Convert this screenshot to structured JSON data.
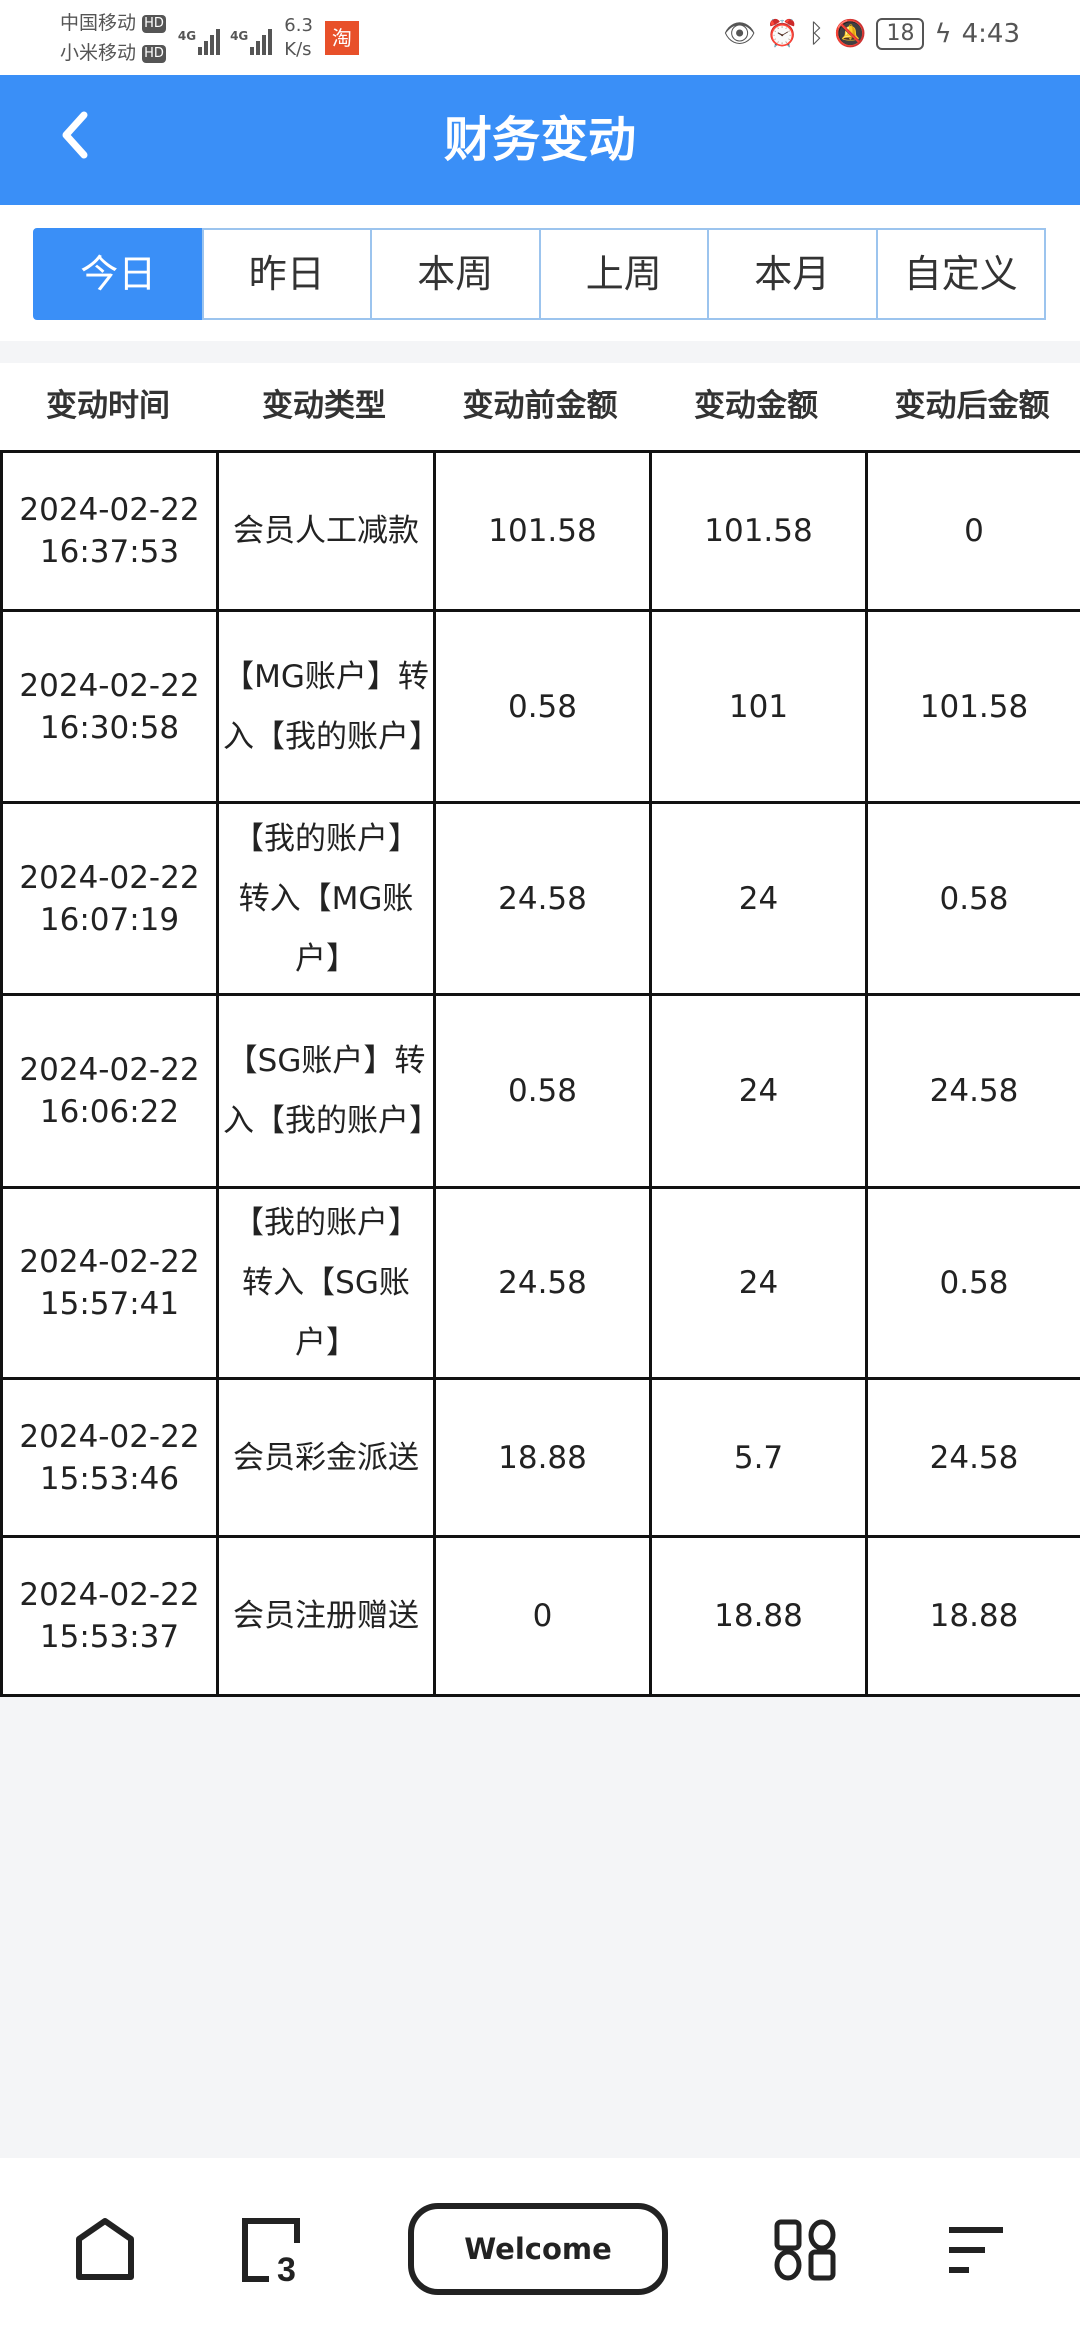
{
  "status_bar": {
    "carrier1": "中国移动",
    "carrier2": "小米移动",
    "hd": "HD",
    "network": "4G",
    "speed_value": "6.3",
    "speed_unit": "K/s",
    "battery": "18",
    "time": "4:43",
    "icons": [
      "eye-icon",
      "alarm-icon",
      "bluetooth-icon",
      "bell-off-icon",
      "battery-icon",
      "charging-icon"
    ]
  },
  "header": {
    "title": "财务变动",
    "back_icon": "chevron-left-icon",
    "color": "#3a8ff7"
  },
  "tabs": [
    {
      "label": "今日",
      "active": true
    },
    {
      "label": "昨日"
    },
    {
      "label": "本周"
    },
    {
      "label": "上周"
    },
    {
      "label": "本月"
    },
    {
      "label": "自定义"
    }
  ],
  "table": {
    "columns": [
      "变动时间",
      "变动类型",
      "变动前金额",
      "变动金额",
      "变动后金额"
    ],
    "rows": [
      {
        "date": "2024-02-22",
        "time": "16:37:53",
        "type": "会员人工减款",
        "before": "101.58",
        "amount": "101.58",
        "after": "0"
      },
      {
        "date": "2024-02-22",
        "time": "16:30:58",
        "type": "【MG账户】转入【我的账户】",
        "before": "0.58",
        "amount": "101",
        "after": "101.58"
      },
      {
        "date": "2024-02-22",
        "time": "16:07:19",
        "type": "【我的账户】转入【MG账户】",
        "before": "24.58",
        "amount": "24",
        "after": "0.58"
      },
      {
        "date": "2024-02-22",
        "time": "16:06:22",
        "type": "【SG账户】转入【我的账户】",
        "before": "0.58",
        "amount": "24",
        "after": "24.58"
      },
      {
        "date": "2024-02-22",
        "time": "15:57:41",
        "type": "【我的账户】转入【SG账户】",
        "before": "24.58",
        "amount": "24",
        "after": "0.58"
      },
      {
        "date": "2024-02-22",
        "time": "15:53:46",
        "type": "会员彩金派送",
        "before": "18.88",
        "amount": "5.7",
        "after": "24.58"
      },
      {
        "date": "2024-02-22",
        "time": "15:53:37",
        "type": "会员注册赠送",
        "before": "0",
        "amount": "18.88",
        "after": "18.88"
      }
    ]
  },
  "bottom_nav": {
    "welcome": "Welcome",
    "tabs_count": "3"
  }
}
